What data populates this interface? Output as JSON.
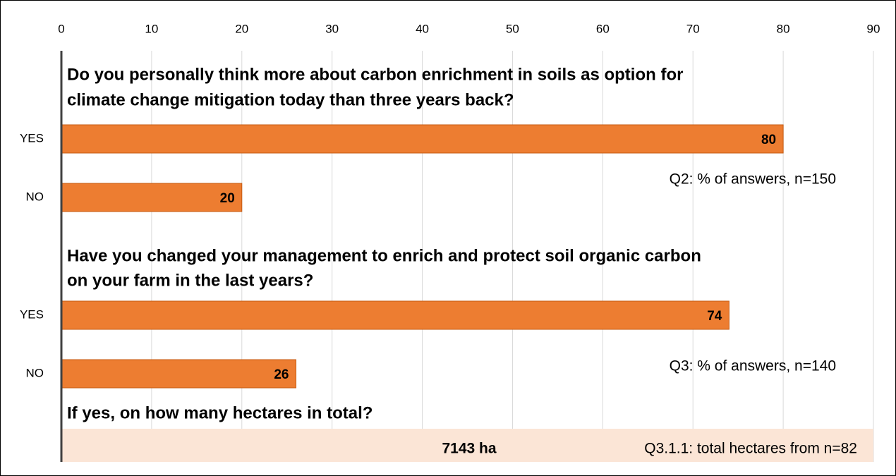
{
  "chart_data": {
    "type": "bar",
    "orientation": "horizontal",
    "categories": [
      "YES",
      "NO",
      "YES",
      "NO"
    ],
    "values": [
      80,
      20,
      74,
      26
    ],
    "color": "#ed7d31",
    "xlim": [
      0,
      90
    ],
    "xticks": [
      0,
      10,
      20,
      30,
      40,
      50,
      60,
      70,
      80,
      90
    ],
    "grid": true,
    "questions": [
      {
        "lines": [
          "Do you personally think more about carbon enrichment in soils as option for",
          "climate change mitigation today than three years back?"
        ],
        "note": "Q2: % of answers, n=150"
      },
      {
        "lines": [
          "Have you changed your management to enrich and protect soil organic carbon",
          "on your farm in the last years?"
        ],
        "note": "Q3: % of answers, n=140"
      },
      {
        "lines": [
          "If yes, on how many hectares in total?"
        ],
        "total": "7143 ha",
        "note": "Q3.1.1: total hectares from n=82"
      }
    ]
  }
}
